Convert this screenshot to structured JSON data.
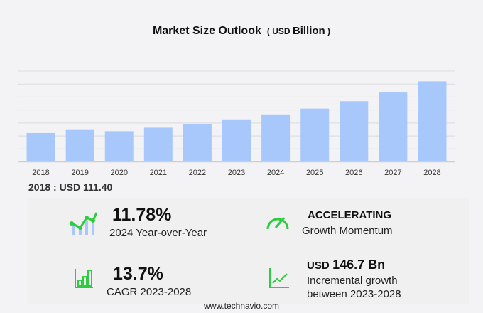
{
  "chart_data": {
    "type": "bar",
    "title": "Market Size Outlook",
    "unit_prefix": "USD",
    "unit": "Billion",
    "categories": [
      "2018",
      "2019",
      "2020",
      "2021",
      "2022",
      "2023",
      "2024",
      "2025",
      "2026",
      "2027",
      "2028"
    ],
    "values": [
      111.4,
      123.0,
      118.5,
      132.0,
      146.5,
      163.9,
      183.2,
      205.5,
      234.0,
      267.5,
      310.6
    ],
    "ylim": [
      0,
      350
    ],
    "grid": true,
    "bar_color": "#a8c8fc"
  },
  "base_label": "2018 : USD  111.40",
  "stats": {
    "yoy_value": "11.78%",
    "yoy_label": "2024 Year-over-Year",
    "momentum_value": "ACCELERATING",
    "momentum_label": "Growth Momentum",
    "cagr_value": "13.7%",
    "cagr_label": "CAGR 2023-2028",
    "incr_prefix": "USD",
    "incr_value": "146.7 Bn",
    "incr_label1": "Incremental growth",
    "incr_label2": "between 2023-2028"
  },
  "footer": "www.technavio.com",
  "accent": "#2ecc40"
}
